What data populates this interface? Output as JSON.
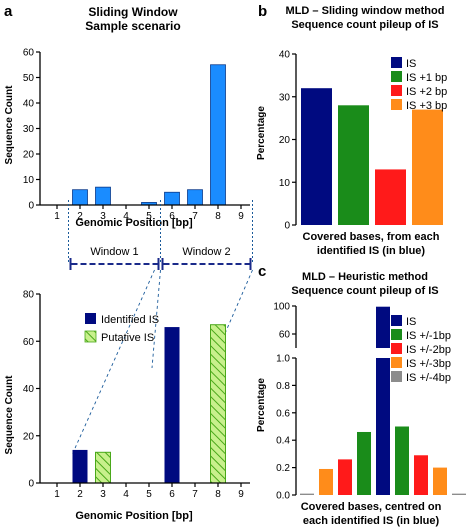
{
  "colors": {
    "navy": "#000a80",
    "blue": "#1a8cff",
    "green": "#1a8c1a",
    "red": "#ff1a1a",
    "orange": "#ff8c1a",
    "gray": "#8c8c8c",
    "hatch_fill": "#c8f08c",
    "hatch_stroke": "#4aa81a"
  },
  "chart_data": [
    {
      "id": "a-top",
      "panel_letter": "a",
      "type": "bar",
      "title": "Sliding Window",
      "subtitle": "Sample scenario",
      "xlabel": "Genomic Position [bp]",
      "ylabel": "Sequence Count",
      "categories": [
        "1",
        "2",
        "3",
        "4",
        "5",
        "6",
        "7",
        "8",
        "9"
      ],
      "values": [
        0,
        6,
        7,
        0,
        1,
        5,
        6,
        55,
        0
      ],
      "ylim": [
        0,
        60
      ],
      "yticks": [
        "0",
        "10",
        "20",
        "30",
        "40",
        "50",
        "60"
      ],
      "windows": [
        {
          "label": "Window 1",
          "from": 2,
          "to": 5
        },
        {
          "label": "Window 2",
          "from": 6,
          "to": 9
        }
      ]
    },
    {
      "id": "a-bottom",
      "type": "bar",
      "xlabel": "Genomic Position [bp]",
      "ylabel": "Sequence Count",
      "categories": [
        "1",
        "2",
        "3",
        "4",
        "5",
        "6",
        "7",
        "8",
        "9"
      ],
      "ylim": [
        0,
        80
      ],
      "yticks": [
        "0",
        "20",
        "40",
        "60",
        "80"
      ],
      "legend_position": "top-left",
      "series": [
        {
          "name": "Identified IS",
          "x": [
            2,
            6
          ],
          "values": [
            14,
            66
          ]
        },
        {
          "name": "Putative IS",
          "x": [
            3,
            8
          ],
          "values": [
            13,
            67
          ]
        }
      ]
    },
    {
      "id": "b",
      "panel_letter": "b",
      "type": "bar",
      "title": "MLD – Sliding window method",
      "subtitle": "Sequence count pileup of IS",
      "ylabel": "Percentage",
      "xlabel_lines": [
        "Covered bases, from each",
        "identified IS (in blue)"
      ],
      "categories": [
        "IS",
        "IS +1 bp",
        "IS +2 bp",
        "IS +3 bp"
      ],
      "values": [
        32,
        28,
        13,
        27
      ],
      "ylim": [
        0,
        40
      ],
      "yticks": [
        "0",
        "10",
        "20",
        "30",
        "40"
      ],
      "legend_position": "top-right"
    },
    {
      "id": "c",
      "panel_letter": "c",
      "type": "bar",
      "title": "MLD – Heuristic method",
      "subtitle": "Sequence count pileup of IS",
      "ylabel": "Percentage",
      "xlabel_lines": [
        "Covered bases, centred on",
        "each identified IS (in blue)"
      ],
      "legend": [
        "IS",
        "IS +/-1bp",
        "IS +/-2bp",
        "IS +/-3bp",
        "IS +/-4bp"
      ],
      "bars": [
        {
          "offset": -4,
          "value": 0.01
        },
        {
          "offset": -3,
          "value": 0.19
        },
        {
          "offset": -2,
          "value": 0.26
        },
        {
          "offset": -1,
          "value": 0.46
        },
        {
          "offset": 0,
          "value": 99
        },
        {
          "offset": 1,
          "value": 0.5
        },
        {
          "offset": 2,
          "value": 0.29
        },
        {
          "offset": 3,
          "value": 0.2
        },
        {
          "offset": 4,
          "value": 0.01
        }
      ],
      "y_axis_break": {
        "lower": [
          0,
          1.0
        ],
        "upper": [
          40,
          100
        ]
      },
      "yticks_lower": [
        "0.0",
        "0.2",
        "0.4",
        "0.6",
        "0.8",
        "1.0"
      ],
      "yticks_upper": [
        "60",
        "100"
      ],
      "legend_position": "top-right"
    }
  ]
}
